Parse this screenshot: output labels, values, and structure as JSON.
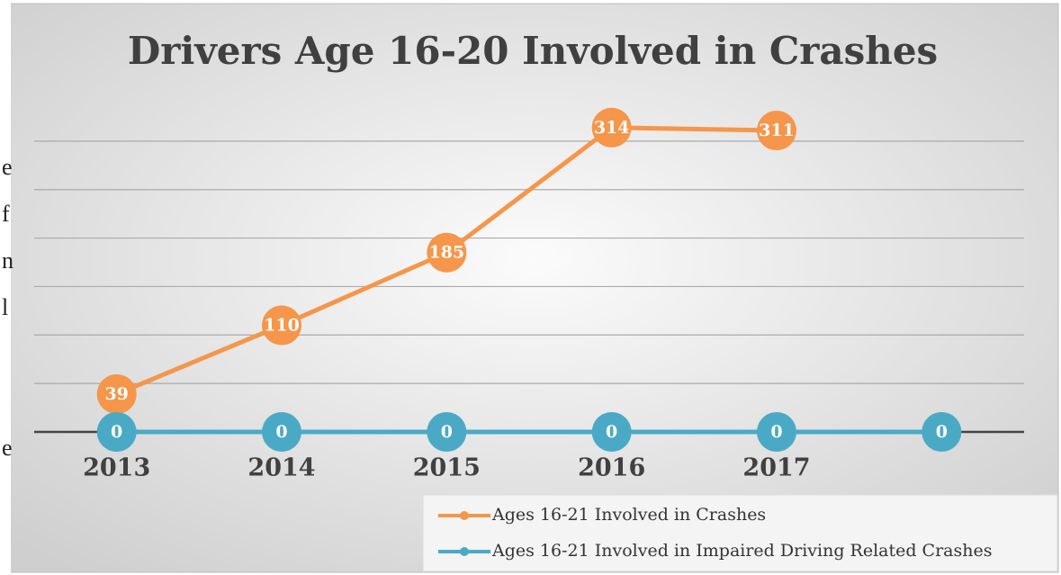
{
  "side_text": [
    "e",
    "f",
    "n",
    "l",
    "e"
  ],
  "chart_data": {
    "type": "line",
    "title": "Drivers Age 16-20 Involved in Crashes",
    "categories": [
      "2013",
      "2014",
      "2015",
      "2016",
      "2017",
      null
    ],
    "series": [
      {
        "name": "Ages 16-21 Involved in Crashes",
        "color": "#f5964a",
        "values": [
          39,
          110,
          185,
          314,
          311,
          null
        ]
      },
      {
        "name": "Ages 16-21 Involved in Impaired Driving Related Crashes",
        "color": "#4aaac6",
        "values": [
          0,
          0,
          0,
          0,
          0,
          0
        ]
      }
    ],
    "ylim": [
      0,
      350
    ],
    "yticks": [
      0,
      50,
      100,
      150,
      200,
      250,
      300
    ],
    "grid": true,
    "legend": "bottom-right"
  }
}
